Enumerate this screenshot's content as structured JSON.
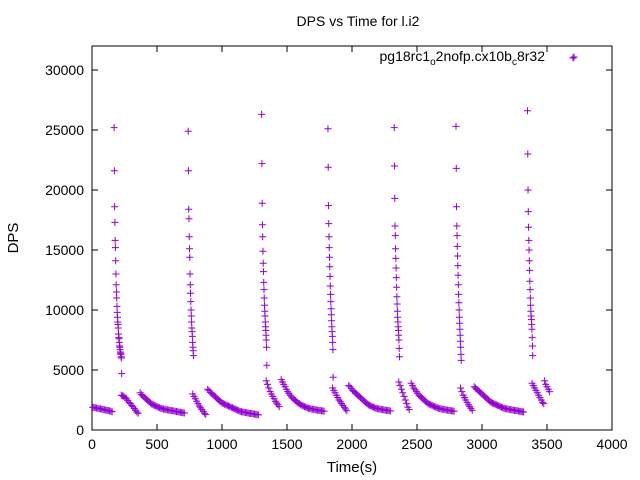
{
  "chart_data": {
    "type": "scatter",
    "title": "DPS vs Time for l.i2",
    "xlabel": "Time(s)",
    "ylabel": "DPS",
    "xlim": [
      0,
      4000
    ],
    "ylim": [
      0,
      32000
    ],
    "xticks": [
      0,
      500,
      1000,
      1500,
      2000,
      2500,
      3000,
      3500,
      4000
    ],
    "yticks": [
      0,
      5000,
      10000,
      15000,
      20000,
      25000,
      30000
    ],
    "xtick_labels": [
      "0",
      "500",
      "1000",
      "1500",
      "2000",
      "2500",
      "3000",
      "3500",
      "4000"
    ],
    "ytick_labels": [
      "0",
      "5000",
      "10000",
      "15000",
      "20000",
      "25000",
      "30000"
    ],
    "grid": false,
    "legend_position": "top-right",
    "marker": "plus",
    "color": "#9400d3",
    "series": [
      {
        "name": "pg18rc1_o2nofp.cx10b_c8r32",
        "name_parts": {
          "a": "pg18rc1",
          "a_sub": "o",
          "b": "2nofp.cx10b",
          "b_sub": "c",
          "c": "8r32"
        },
        "x": [
          5,
          15,
          25,
          35,
          45,
          55,
          65,
          75,
          85,
          95,
          105,
          115,
          125,
          135,
          145,
          155,
          170,
          172,
          174,
          176,
          178,
          180,
          182,
          184,
          186,
          188,
          190,
          192,
          194,
          196,
          198,
          200,
          202,
          204,
          206,
          208,
          210,
          212,
          214,
          216,
          218,
          220,
          222,
          224,
          226,
          228,
          225,
          235,
          245,
          255,
          265,
          275,
          285,
          295,
          305,
          315,
          325,
          335,
          345,
          355,
          370,
          380,
          390,
          400,
          410,
          420,
          430,
          440,
          450,
          460,
          470,
          480,
          490,
          500,
          510,
          520,
          530,
          540,
          550,
          560,
          570,
          580,
          590,
          600,
          610,
          620,
          630,
          640,
          650,
          660,
          670,
          680,
          690,
          700,
          710,
          740,
          742,
          744,
          746,
          748,
          750,
          752,
          754,
          756,
          758,
          760,
          762,
          764,
          766,
          768,
          770,
          772,
          774,
          776,
          778,
          780,
          775,
          785,
          795,
          805,
          815,
          825,
          835,
          845,
          855,
          865,
          875,
          890,
          900,
          910,
          920,
          930,
          940,
          950,
          960,
          970,
          980,
          990,
          1000,
          1010,
          1020,
          1030,
          1040,
          1050,
          1060,
          1070,
          1080,
          1090,
          1100,
          1110,
          1120,
          1130,
          1140,
          1150,
          1160,
          1170,
          1180,
          1190,
          1200,
          1210,
          1220,
          1230,
          1240,
          1250,
          1260,
          1270,
          1280,
          1305,
          1307,
          1309,
          1311,
          1313,
          1315,
          1317,
          1319,
          1321,
          1323,
          1325,
          1327,
          1329,
          1331,
          1333,
          1335,
          1337,
          1339,
          1341,
          1343,
          1345,
          1340,
          1350,
          1360,
          1370,
          1380,
          1390,
          1400,
          1410,
          1420,
          1430,
          1440,
          1455,
          1465,
          1475,
          1485,
          1495,
          1505,
          1515,
          1525,
          1535,
          1545,
          1555,
          1565,
          1575,
          1585,
          1595,
          1605,
          1615,
          1625,
          1635,
          1645,
          1655,
          1665,
          1675,
          1685,
          1695,
          1705,
          1715,
          1725,
          1735,
          1745,
          1755,
          1765,
          1775,
          1785,
          1815,
          1817,
          1819,
          1821,
          1823,
          1825,
          1827,
          1829,
          1831,
          1833,
          1835,
          1837,
          1839,
          1841,
          1843,
          1845,
          1847,
          1849,
          1851,
          1853,
          1855,
          1850,
          1860,
          1870,
          1880,
          1890,
          1900,
          1910,
          1920,
          1930,
          1940,
          1950,
          1960,
          1975,
          1985,
          1995,
          2005,
          2015,
          2025,
          2035,
          2045,
          2055,
          2065,
          2075,
          2085,
          2095,
          2105,
          2115,
          2125,
          2135,
          2145,
          2155,
          2165,
          2175,
          2185,
          2195,
          2205,
          2215,
          2225,
          2235,
          2245,
          2255,
          2265,
          2275,
          2285,
          2295,
          2325,
          2327,
          2329,
          2331,
          2333,
          2335,
          2337,
          2339,
          2341,
          2343,
          2345,
          2347,
          2349,
          2351,
          2353,
          2355,
          2357,
          2359,
          2361,
          2363,
          2365,
          2360,
          2370,
          2380,
          2390,
          2400,
          2410,
          2420,
          2430,
          2440,
          2455,
          2465,
          2475,
          2485,
          2495,
          2505,
          2515,
          2525,
          2535,
          2545,
          2555,
          2565,
          2575,
          2585,
          2595,
          2605,
          2615,
          2625,
          2635,
          2645,
          2655,
          2665,
          2675,
          2685,
          2695,
          2705,
          2715,
          2725,
          2735,
          2745,
          2755,
          2765,
          2775,
          2785,
          2800,
          2802,
          2804,
          2806,
          2808,
          2810,
          2812,
          2814,
          2816,
          2818,
          2820,
          2822,
          2824,
          2826,
          2828,
          2830,
          2832,
          2834,
          2836,
          2838,
          2840,
          2835,
          2845,
          2855,
          2865,
          2875,
          2885,
          2895,
          2905,
          2915,
          2925,
          2940,
          2950,
          2960,
          2970,
          2980,
          2990,
          3000,
          3010,
          3020,
          3030,
          3040,
          3050,
          3060,
          3070,
          3080,
          3090,
          3100,
          3110,
          3120,
          3130,
          3140,
          3150,
          3160,
          3170,
          3180,
          3190,
          3200,
          3210,
          3220,
          3230,
          3240,
          3250,
          3260,
          3270,
          3280,
          3290,
          3300,
          3310,
          3320,
          3350,
          3352,
          3354,
          3356,
          3358,
          3360,
          3362,
          3364,
          3366,
          3368,
          3370,
          3372,
          3374,
          3376,
          3378,
          3380,
          3382,
          3384,
          3386,
          3388,
          3390,
          3385,
          3395,
          3405,
          3415,
          3425,
          3435,
          3445,
          3455,
          3465,
          3475,
          3480,
          3490,
          3500,
          3510,
          3520,
          3700
        ],
        "y": [
          1900,
          1880,
          1850,
          1830,
          1800,
          1780,
          1760,
          1740,
          1710,
          1690,
          1670,
          1640,
          1620,
          1590,
          1560,
          1520,
          25200,
          21600,
          18600,
          17300,
          15800,
          15200,
          14100,
          13000,
          12100,
          11500,
          11000,
          10300,
          9800,
          9400,
          9000,
          8800,
          8500,
          8000,
          7700,
          7600,
          7300,
          7000,
          6900,
          6700,
          6500,
          6400,
          6300,
          6100,
          6000,
          4700,
          2900,
          2850,
          2800,
          2700,
          2600,
          2450,
          2300,
          2200,
          2050,
          1950,
          1800,
          1650,
          1500,
          1400,
          3100,
          2950,
          2850,
          2750,
          2650,
          2550,
          2450,
          2350,
          2250,
          2150,
          2100,
          2050,
          2000,
          1950,
          1900,
          1850,
          1800,
          1780,
          1750,
          1720,
          1700,
          1680,
          1660,
          1640,
          1620,
          1600,
          1580,
          1560,
          1540,
          1520,
          1500,
          1480,
          1460,
          1440,
          1420,
          24900,
          21600,
          18400,
          17600,
          16100,
          15100,
          14400,
          13000,
          12100,
          11400,
          10700,
          10000,
          9500,
          9000,
          8500,
          8200,
          7800,
          7300,
          6900,
          6600,
          6200,
          3000,
          2800,
          2600,
          2400,
          2200,
          2000,
          1850,
          1700,
          1550,
          1400,
          1300,
          3400,
          3300,
          3150,
          3050,
          2950,
          2850,
          2750,
          2650,
          2550,
          2450,
          2350,
          2250,
          2200,
          2150,
          2100,
          2050,
          2000,
          1950,
          1900,
          1850,
          1800,
          1750,
          1700,
          1650,
          1600,
          1550,
          1520,
          1500,
          1480,
          1460,
          1440,
          1420,
          1400,
          1380,
          1360,
          1340,
          1320,
          1300,
          1280,
          1260,
          26300,
          22200,
          18900,
          17100,
          16100,
          14900,
          13900,
          13200,
          12300,
          11700,
          11000,
          10400,
          9900,
          9500,
          9000,
          8600,
          8300,
          7900,
          7500,
          6900,
          5400,
          4100,
          3800,
          3500,
          3200,
          3000,
          2800,
          2600,
          2400,
          2250,
          2100,
          1950,
          4200,
          4000,
          3800,
          3600,
          3400,
          3200,
          3050,
          2900,
          2750,
          2650,
          2550,
          2450,
          2350,
          2250,
          2200,
          2100,
          2050,
          2000,
          1950,
          1900,
          1850,
          1800,
          1780,
          1760,
          1740,
          1720,
          1700,
          1680,
          1660,
          1640,
          1620,
          1600,
          1580,
          1560,
          25100,
          21900,
          18700,
          17200,
          16100,
          15200,
          14400,
          13600,
          12800,
          12000,
          11300,
          10700,
          10100,
          9600,
          9100,
          8600,
          8200,
          7800,
          7300,
          6700,
          4400,
          3500,
          3300,
          3100,
          2900,
          2700,
          2500,
          2350,
          2200,
          2050,
          1900,
          1750,
          1600,
          3700,
          3600,
          3450,
          3300,
          3200,
          3100,
          3000,
          2900,
          2800,
          2700,
          2600,
          2500,
          2400,
          2300,
          2200,
          2100,
          2050,
          2000,
          1950,
          1900,
          1850,
          1800,
          1780,
          1760,
          1740,
          1720,
          1700,
          1680,
          1660,
          1640,
          1620,
          1600,
          1580,
          25200,
          22000,
          19300,
          17000,
          16200,
          15100,
          14300,
          13500,
          12700,
          11900,
          11100,
          10500,
          9900,
          9400,
          9000,
          8600,
          8300,
          7900,
          7500,
          6800,
          6100,
          4000,
          3700,
          3400,
          3100,
          2800,
          2500,
          2200,
          1900,
          1700,
          3900,
          3700,
          3500,
          3350,
          3200,
          3050,
          2900,
          2800,
          2700,
          2600,
          2500,
          2400,
          2300,
          2200,
          2150,
          2100,
          2050,
          2000,
          1950,
          1900,
          1850,
          1800,
          1780,
          1760,
          1740,
          1720,
          1700,
          1680,
          1660,
          1640,
          1620,
          1600,
          1580,
          1560,
          25300,
          21800,
          18600,
          17000,
          16200,
          15300,
          14500,
          13700,
          12900,
          12100,
          11300,
          10600,
          10000,
          9400,
          8900,
          8400,
          7900,
          7400,
          6900,
          6300,
          5800,
          3500,
          3200,
          2900,
          2700,
          2500,
          2300,
          2100,
          1950,
          1800,
          1650,
          3600,
          3500,
          3400,
          3300,
          3200,
          3100,
          3000,
          2900,
          2800,
          2700,
          2600,
          2500,
          2400,
          2300,
          2250,
          2200,
          2150,
          2100,
          2050,
          2000,
          1950,
          1900,
          1850,
          1800,
          1780,
          1760,
          1740,
          1720,
          1700,
          1680,
          1660,
          1640,
          1620,
          1600,
          1580,
          1560,
          1540,
          1520,
          1500,
          26600,
          23000,
          20000,
          18200,
          16900,
          15800,
          15000,
          14100,
          13300,
          12400,
          11700,
          11000,
          10400,
          9900,
          9500,
          9200,
          8800,
          8400,
          7700,
          7000,
          6200,
          3900,
          3700,
          3500,
          3300,
          3100,
          2900,
          2700,
          2500,
          2300,
          2200,
          4100,
          3800,
          3600,
          3400,
          3200,
          31000
        ]
      }
    ]
  }
}
